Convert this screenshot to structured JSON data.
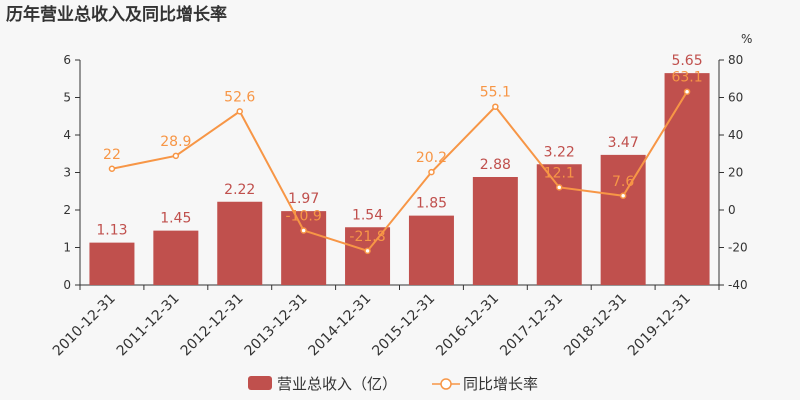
{
  "chart_data": {
    "type": "bar",
    "title": "历年营业总收入及同比增长率",
    "categories": [
      "2010-12-31",
      "2011-12-31",
      "2012-12-31",
      "2013-12-31",
      "2014-12-31",
      "2015-12-31",
      "2016-12-31",
      "2017-12-31",
      "2018-12-31",
      "2019-12-31"
    ],
    "series": [
      {
        "name": "营业总收入（亿）",
        "type": "bar",
        "axis": "left",
        "color": "#c0504d",
        "values": [
          1.13,
          1.45,
          2.22,
          1.97,
          1.54,
          1.85,
          2.88,
          3.22,
          3.47,
          5.65
        ]
      },
      {
        "name": "同比增长率",
        "type": "line",
        "axis": "right",
        "color": "#f79646",
        "values": [
          22,
          28.9,
          52.6,
          -10.9,
          -21.8,
          20.2,
          55.1,
          12.1,
          7.6,
          63.1
        ]
      }
    ],
    "y_left": {
      "min": 0,
      "max": 6,
      "ticks": [
        0,
        1,
        2,
        3,
        4,
        5,
        6
      ]
    },
    "y_right": {
      "min": -40,
      "max": 80,
      "ticks": [
        -40,
        -20,
        0,
        20,
        40,
        60,
        80
      ],
      "unit": "%"
    },
    "grid": false,
    "legend_position": "bottom"
  }
}
